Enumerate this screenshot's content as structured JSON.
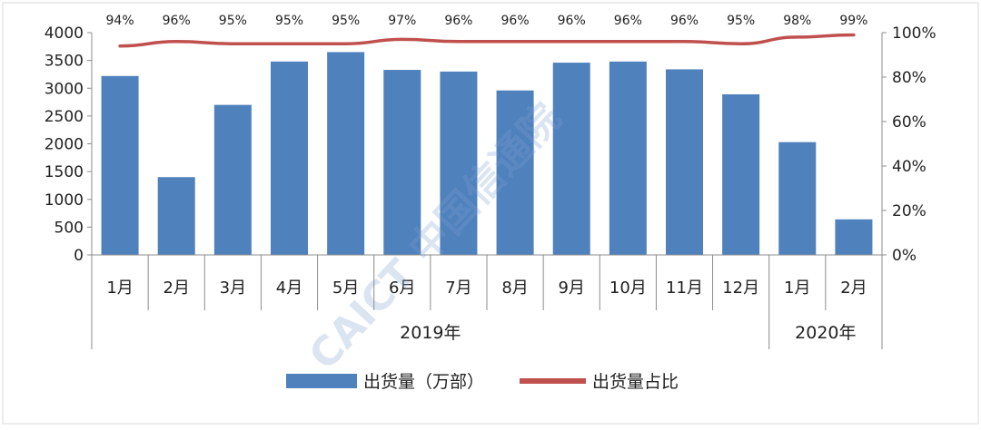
{
  "chart_data": {
    "type": "bar",
    "categories": [
      "1月",
      "2月",
      "3月",
      "4月",
      "5月",
      "6月",
      "7月",
      "8月",
      "9月",
      "10月",
      "11月",
      "12月",
      "1月",
      "2月"
    ],
    "groups": [
      {
        "label": "2019年",
        "count": 12
      },
      {
        "label": "2020年",
        "count": 2
      }
    ],
    "series": [
      {
        "name": "出货量（万部）",
        "type": "bar",
        "axis": "left",
        "color": "#4f81bd",
        "values": [
          3220,
          1400,
          2700,
          3480,
          3650,
          3330,
          3300,
          2960,
          3460,
          3480,
          3340,
          2890,
          2030,
          640
        ]
      },
      {
        "name": "出货量占比",
        "type": "line",
        "axis": "right",
        "color": "#c0504d",
        "values": [
          94,
          96,
          95,
          95,
          95,
          97,
          96,
          96,
          96,
          96,
          96,
          95,
          98,
          99
        ],
        "labels": [
          "94%",
          "96%",
          "95%",
          "95%",
          "95%",
          "97%",
          "96%",
          "96%",
          "96%",
          "96%",
          "96%",
          "95%",
          "98%",
          "99%"
        ]
      }
    ],
    "y_left": {
      "min": 0,
      "max": 4000,
      "ticks": [
        "0",
        "500",
        "1000",
        "1500",
        "2000",
        "2500",
        "3000",
        "3500",
        "4000"
      ]
    },
    "y_right": {
      "min": 0,
      "max": 100,
      "ticks": [
        "0%",
        "20%",
        "40%",
        "60%",
        "80%",
        "100%"
      ]
    },
    "legend": {
      "position": "bottom"
    },
    "grid": false,
    "watermark": "CAICT 中国信通院"
  }
}
